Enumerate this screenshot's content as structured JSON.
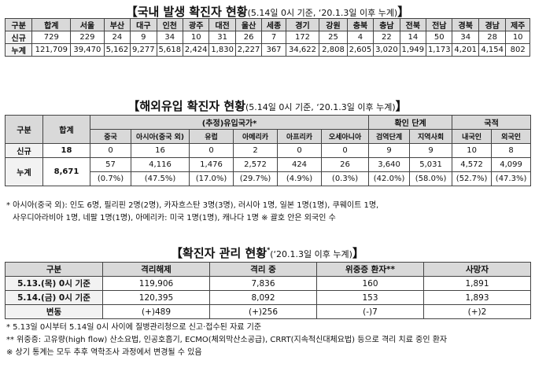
{
  "table1": {
    "title": "【국내 발생 확진자 현황",
    "subtitle": "(5.14일 0시 기준, ‘20.1.3일 이후 누계)",
    "close": "】",
    "headers": [
      "구분",
      "합계",
      "서울",
      "부산",
      "대구",
      "인천",
      "광주",
      "대전",
      "울산",
      "세종",
      "경기",
      "강원",
      "충북",
      "충남",
      "전북",
      "전남",
      "경북",
      "경남",
      "제주"
    ],
    "rows": [
      [
        "신규",
        "729",
        "229",
        "24",
        "9",
        "34",
        "10",
        "31",
        "26",
        "7",
        "172",
        "25",
        "4",
        "22",
        "14",
        "50",
        "34",
        "28",
        "10"
      ],
      [
        "누계",
        "121,709",
        "39,470",
        "5,162",
        "9,277",
        "5,618",
        "2,424",
        "1,830",
        "2,227",
        "367",
        "34,622",
        "2,808",
        "2,605",
        "3,020",
        "1,949",
        "1,173",
        "4,201",
        "4,154",
        "802"
      ]
    ]
  },
  "table2": {
    "title": "【해외유입 확진자 현황",
    "subtitle": "(5.14일 0시 기준, ‘20.1.3일 이후 누계)",
    "close": "】",
    "col_div": "구분",
    "col_total": "합계",
    "group_estimated": "(추정)유입국가*",
    "group_confirm": "확인 단계",
    "group_nationality": "국적",
    "sub_headers": [
      "중국",
      "아시아(중국 외)",
      "유럽",
      "아메리카",
      "아프리카",
      "오세아니아",
      "검역단계",
      "지역사회",
      "내국인",
      "외국인"
    ],
    "new_label": "신규",
    "new_total": "18",
    "new_values": [
      "0",
      "16",
      "0",
      "2",
      "0",
      "0",
      "9",
      "9",
      "10",
      "8"
    ],
    "cum_label": "누계",
    "cum_total": "8,671",
    "cum_values": [
      "57",
      "4,116",
      "1,476",
      "2,572",
      "424",
      "26",
      "3,640",
      "5,031",
      "4,572",
      "4,099"
    ],
    "cum_pct": [
      "(0.7%)",
      "(47.5%)",
      "(17.0%)",
      "(29.7%)",
      "(4.9%)",
      "(0.3%)",
      "(42.0%)",
      "(58.0%)",
      "(52.7%)",
      "(47.3%)"
    ]
  },
  "notes2": {
    "line1": "* 아시아(중국 외): 인도 6명, 필리핀 2명(2명), 카자흐스탄 3명(3명), 러시아 1명, 일본 1명(1명), 쿠웨이트 1명,",
    "line2": "사우디아라비아 1명, 네팔 1명(1명), 아메리카: 미국 1명(1명), 캐나다 1명     ※ 괄호 안은 외국인 수"
  },
  "table3": {
    "title": "【확진자 관리 현황",
    "title_sup": "*",
    "subtitle": "(‘20.1.3일 이후 누계)",
    "close": "】",
    "headers": [
      "구분",
      "격리해제",
      "격리 중",
      "위중증 환자**",
      "사망자"
    ],
    "rows": [
      [
        "5.13.(목) 0시 기준",
        "119,906",
        "7,836",
        "160",
        "1,891"
      ],
      [
        "5.14.(금) 0시 기준",
        "120,395",
        "8,092",
        "153",
        "1,893"
      ],
      [
        "변동",
        "(+)489",
        "(+)256",
        "(-)7",
        "(+)2"
      ]
    ]
  },
  "notes3": {
    "line1": "* 5.13일 0시부터 5.14일 0시 사이에 질병관리청으로 신고·접수된 자료 기준",
    "line2": "** 위중증: 고유량(high flow) 산소요법, 인공호흡기, ECMO(체외막산소공급), CRRT(지속적신대체요법) 등으로 격리 치료 중인 환자",
    "line3": "※ 상기 통계는 모두 추후 역학조사 과정에서 변경될 수 있음"
  }
}
